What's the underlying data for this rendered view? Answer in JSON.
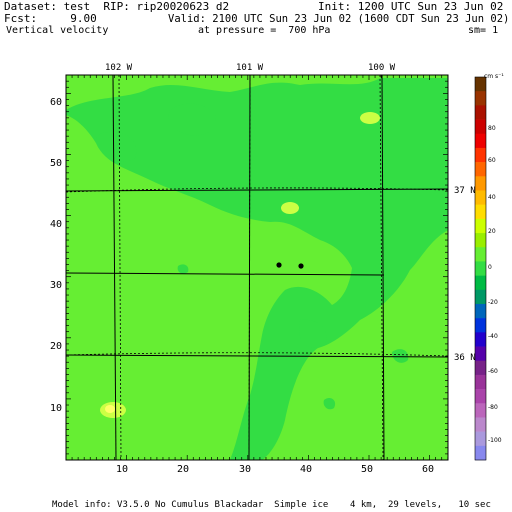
{
  "header": {
    "dataset": "Dataset: test  RIP: rip20020623 d2",
    "init": "Init: 1200 UTC Sun 23 Jun 02",
    "fcst": "Fcst:     9.00",
    "valid": "Valid: 2100 UTC Sun 23 Jun 02 (1600 CDT Sun 23 Jun 02)",
    "field": "Vertical velocity",
    "pressure": "at pressure =  700 hPa",
    "smoothing": "sm= 1"
  },
  "map": {
    "x_ticks": [
      "10",
      "20",
      "30",
      "40",
      "50",
      "60"
    ],
    "y_ticks": [
      "10",
      "20",
      "30",
      "40",
      "50",
      "60"
    ],
    "lon_labels": [
      "102 W",
      "101 W",
      "100 W"
    ],
    "lat_labels": [
      "37 N",
      "36 N"
    ],
    "base_color": "#66ee33",
    "region_color": "#33dd44",
    "highlight_color": "#ccff44",
    "stations": 2
  },
  "colorbar": {
    "unit": "cm s⁻¹",
    "labels": [
      "80",
      "60",
      "40",
      "20",
      "0",
      "-20",
      "-40",
      "-60",
      "-80",
      "-100"
    ],
    "colors": [
      "#663300",
      "#993300",
      "#aa1100",
      "#cc0000",
      "#ee0000",
      "#ff3300",
      "#ff6600",
      "#ff9900",
      "#ffbb00",
      "#ffdd00",
      "#ccff00",
      "#99ee00",
      "#66ee33",
      "#33dd44",
      "#00bb44",
      "#009966",
      "#0066bb",
      "#0033dd",
      "#2200cc",
      "#5500aa",
      "#772288",
      "#993399",
      "#aa44aa",
      "#bb66bb",
      "#bb88cc",
      "#aa99dd",
      "#8888ee"
    ]
  },
  "footer": {
    "model_info": "Model info: V3.5.0 No Cumulus Blackadar  Simple ice    4 km,  29 levels,   10 sec"
  }
}
